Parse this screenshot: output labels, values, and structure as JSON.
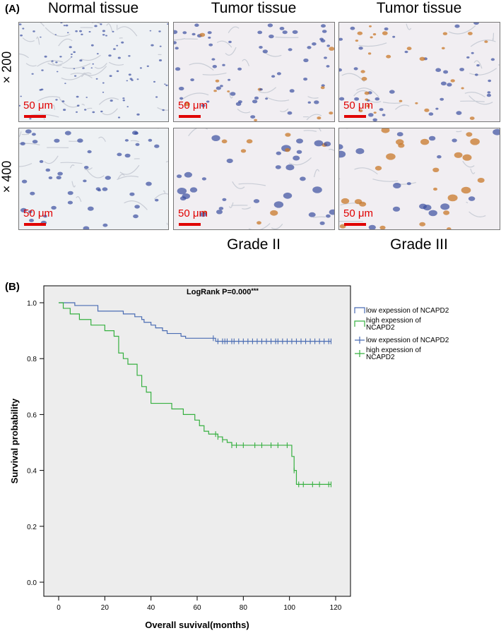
{
  "panel_a": {
    "label": "(A)",
    "columns": [
      "Normal tissue",
      "Tumor tissue",
      "Tumor tissue"
    ],
    "rows": [
      "× 200",
      "× 400"
    ],
    "grades": [
      "Grade II",
      "Grade III"
    ],
    "scale_label": "50 μm",
    "colors": {
      "scale": "#e00000",
      "nuclei": "#3a4fa0",
      "stain": "#c8782a",
      "background": "#eef1f4"
    }
  },
  "panel_b": {
    "label": "(B)",
    "annotation": "LogRank P=0.000",
    "annotation_suffix": "***"
  },
  "chart_data": {
    "type": "line",
    "title": "",
    "xlabel": "Overall suvival(months)",
    "ylabel": "Survival probability",
    "xlim": [
      0,
      120
    ],
    "ylim": [
      0.0,
      1.0
    ],
    "xticks": [
      0,
      20,
      40,
      60,
      80,
      100,
      120
    ],
    "yticks": [
      0.0,
      0.2,
      0.4,
      0.6,
      0.8,
      1.0
    ],
    "legend": [
      "low expession of NCAPD2",
      "high expession of NCAPD2",
      "low expession of NCAPD2",
      "high expession of NCAPD2"
    ],
    "legend_position": "right-outside",
    "series": [
      {
        "name": "low expession of NCAPD2",
        "color": "#4a6cb3",
        "steps": [
          [
            0,
            1.0
          ],
          [
            7,
            0.99
          ],
          [
            17,
            0.97
          ],
          [
            28,
            0.96
          ],
          [
            33,
            0.95
          ],
          [
            36,
            0.94
          ],
          [
            37,
            0.93
          ],
          [
            40,
            0.92
          ],
          [
            42,
            0.91
          ],
          [
            45,
            0.9
          ],
          [
            47,
            0.89
          ],
          [
            53,
            0.88
          ],
          [
            55,
            0.873
          ],
          [
            68,
            0.862
          ],
          [
            118,
            0.862
          ]
        ],
        "censored_x": [
          67,
          69,
          71,
          72,
          73,
          75,
          76,
          78,
          80,
          82,
          84,
          86,
          88,
          90,
          92,
          94,
          95,
          97,
          99,
          101,
          103,
          105,
          107,
          109,
          111,
          113,
          115,
          117,
          118
        ]
      },
      {
        "name": "high expession of NCAPD2",
        "color": "#36b040",
        "steps": [
          [
            0,
            1.0
          ],
          [
            2,
            0.98
          ],
          [
            5,
            0.96
          ],
          [
            9,
            0.94
          ],
          [
            14,
            0.92
          ],
          [
            20,
            0.9
          ],
          [
            24,
            0.88
          ],
          [
            26,
            0.82
          ],
          [
            28,
            0.8
          ],
          [
            30,
            0.78
          ],
          [
            34,
            0.74
          ],
          [
            36,
            0.7
          ],
          [
            38,
            0.68
          ],
          [
            40,
            0.64
          ],
          [
            49,
            0.62
          ],
          [
            54,
            0.6
          ],
          [
            59,
            0.58
          ],
          [
            61,
            0.56
          ],
          [
            63,
            0.54
          ],
          [
            65,
            0.53
          ],
          [
            69,
            0.52
          ],
          [
            71,
            0.51
          ],
          [
            73,
            0.5
          ],
          [
            75,
            0.49
          ],
          [
            101,
            0.45
          ],
          [
            102,
            0.4
          ],
          [
            103,
            0.35
          ],
          [
            118,
            0.35
          ]
        ],
        "censored_x": [
          68,
          69,
          71,
          75,
          77,
          80,
          85,
          88,
          92,
          95,
          99,
          102,
          104,
          106,
          110,
          113,
          117,
          118
        ]
      }
    ]
  }
}
